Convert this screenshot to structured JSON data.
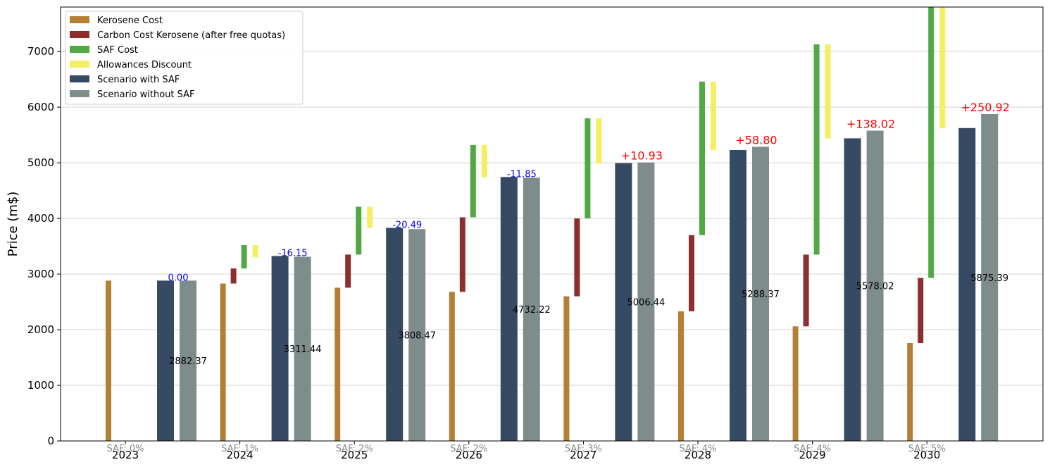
{
  "chart_data": {
    "type": "bar",
    "ylabel": "Price (m$)",
    "ylim": [
      0,
      7800
    ],
    "y_ticks": [
      0,
      1000,
      2000,
      3000,
      4000,
      5000,
      6000,
      7000
    ],
    "grid": "horizontal",
    "legend_position": "top-left",
    "colors": {
      "kerosene": "#B47E35",
      "carbon": "#8B2F2F",
      "saf": "#52A844",
      "allowances": "#F3EE62",
      "with_saf": "#374A63",
      "without_saf": "#7F8C8C",
      "diff_negative": "#0000ff",
      "diff_positive": "#ff0000"
    },
    "legend": [
      {
        "key": "kerosene",
        "label": "Kerosene Cost"
      },
      {
        "key": "carbon",
        "label": "Carbon Cost Kerosene (after free quotas)"
      },
      {
        "key": "saf",
        "label": "SAF Cost"
      },
      {
        "key": "allowances",
        "label": "Allowances Discount"
      },
      {
        "key": "with_saf",
        "label": "Scenario with SAF"
      },
      {
        "key": "without_saf",
        "label": "Scenario without SAF"
      }
    ],
    "categories": [
      "2023",
      "2024",
      "2025",
      "2026",
      "2027",
      "2028",
      "2029",
      "2030"
    ],
    "saf_share_labels": [
      "SAF: 0%",
      "SAF: 1%",
      "SAF: 2%",
      "SAF: 2%",
      "SAF: 3%",
      "SAF: 4%",
      "SAF: 4%",
      "SAF: 5%"
    ],
    "kerosene_cost": [
      2882,
      2830,
      2755,
      2680,
      2600,
      2330,
      2060,
      1760
    ],
    "carbon_cost_range": [
      [
        0,
        0
      ],
      [
        2830,
        3100
      ],
      [
        2755,
        3350
      ],
      [
        2680,
        4020
      ],
      [
        2600,
        4000
      ],
      [
        2330,
        3700
      ],
      [
        2060,
        3350
      ],
      [
        1760,
        2930
      ]
    ],
    "saf_cost_range": [
      [
        0,
        0
      ],
      [
        3100,
        3520
      ],
      [
        3350,
        4210
      ],
      [
        4020,
        5320
      ],
      [
        4000,
        5800
      ],
      [
        3700,
        6460
      ],
      [
        3350,
        7130
      ],
      [
        2930,
        7800
      ]
    ],
    "allowances_range": [
      [
        0,
        0
      ],
      [
        3300,
        3520
      ],
      [
        3830,
        4210
      ],
      [
        4740,
        5320
      ],
      [
        4990,
        5800
      ],
      [
        5230,
        6460
      ],
      [
        5440,
        7130
      ],
      [
        5620,
        7800
      ]
    ],
    "scenario_with_saf": [
      2882.37,
      3325,
      3830,
      4745,
      4995,
      5230,
      5440,
      5625
    ],
    "scenario_without_saf": [
      2882.37,
      3311.44,
      3808.47,
      4732.22,
      5006.44,
      5288.37,
      5578.02,
      5875.39
    ],
    "without_saf_labels": [
      "2882.37",
      "3311.44",
      "3808.47",
      "4732.22",
      "5006.44",
      "5288.37",
      "5578.02",
      "5875.39"
    ],
    "difference_labels": [
      "0.00",
      "-16.15",
      "-20.49",
      "-11.85",
      "+10.93",
      "+58.80",
      "+138.02",
      "+250.92"
    ]
  }
}
